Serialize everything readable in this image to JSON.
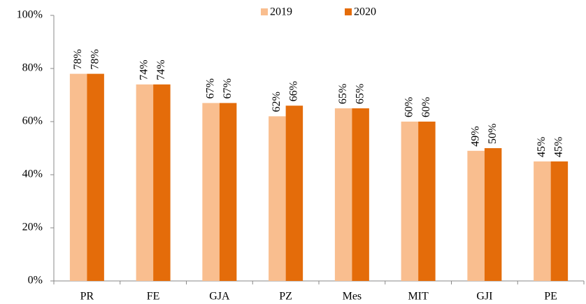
{
  "chart_data": {
    "type": "bar",
    "categories": [
      "PR",
      "FE",
      "GJA",
      "PZ",
      "Mes",
      "MIT",
      "GJI",
      "PE"
    ],
    "series": [
      {
        "name": "2019",
        "color": "#f9be8f",
        "values": [
          78,
          74,
          67,
          62,
          65,
          60,
          49,
          45
        ],
        "value_labels": [
          "78%",
          "74%",
          "67%",
          "62%",
          "65%",
          "60%",
          "49%",
          "45%"
        ]
      },
      {
        "name": "2020",
        "color": "#e46c0a",
        "values": [
          78,
          74,
          67,
          66,
          65,
          60,
          50,
          45
        ],
        "value_labels": [
          "78%",
          "74%",
          "67%",
          "66%",
          "65%",
          "60%",
          "50%",
          "45%"
        ]
      }
    ],
    "ylim": [
      0,
      100
    ],
    "yticks": [
      {
        "value": 0,
        "label": "0%"
      },
      {
        "value": 20,
        "label": "20%"
      },
      {
        "value": 40,
        "label": "40%"
      },
      {
        "value": 60,
        "label": "60%"
      },
      {
        "value": 80,
        "label": "80%"
      },
      {
        "value": 100,
        "label": "100%"
      }
    ],
    "grid": false,
    "legend": "top"
  }
}
